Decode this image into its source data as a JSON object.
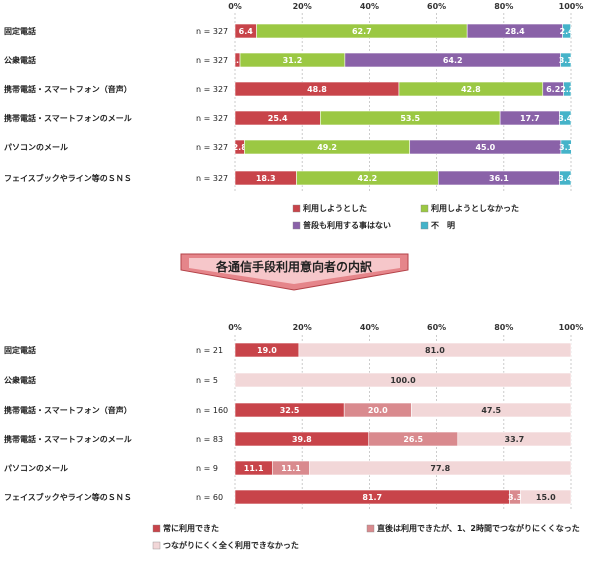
{
  "chart_data": [
    {
      "type": "bar",
      "stacked": true,
      "orientation": "horizontal",
      "xlim": [
        0,
        100
      ],
      "x_ticks": [
        "0%",
        "20%",
        "40%",
        "60%",
        "80%",
        "100%"
      ],
      "categories": [
        "固定電話",
        "公衆電話",
        "携帯電話・スマートフォン（音声）",
        "携帯電話・スマートフォンのメール",
        "パソコンのメール",
        "フェイスブックやライン等のＳＮＳ"
      ],
      "n_labels": [
        "n = 327",
        "n = 327",
        "n = 327",
        "n = 327",
        "n = 327",
        "n = 327"
      ],
      "series": [
        {
          "name": "利用しようとした",
          "color": "#c8444a",
          "values": [
            6.4,
            1.5,
            48.8,
            25.4,
            2.8,
            18.3
          ],
          "labels": [
            "6.4",
            "1.5",
            "48.8",
            "25.4",
            "2.8",
            "18.3"
          ]
        },
        {
          "name": "利用しようとしなかった",
          "color": "#9bc843",
          "values": [
            62.7,
            31.2,
            42.8,
            53.5,
            49.2,
            42.2
          ],
          "labels": [
            "62.7",
            "31.2",
            "42.8",
            "53.5",
            "49.2",
            "42.2"
          ]
        },
        {
          "name": "普段も利用する事はない",
          "color": "#8a62a8",
          "values": [
            28.4,
            64.2,
            6.2,
            17.7,
            45.0,
            36.1
          ],
          "labels": [
            "28.4",
            "64.2",
            "6.2",
            "17.7",
            "45.0",
            "36.1"
          ]
        },
        {
          "name": "不　明",
          "color": "#45b3c9",
          "values": [
            2.4,
            3.1,
            2.2,
            3.4,
            3.1,
            3.4
          ],
          "labels": [
            "2.4",
            "3.1",
            "2.2",
            "3.4",
            "3.1",
            "3.4"
          ]
        }
      ],
      "legend": "bottom"
    },
    {
      "type": "bar",
      "stacked": true,
      "orientation": "horizontal",
      "xlim": [
        0,
        100
      ],
      "x_ticks": [
        "0%",
        "20%",
        "40%",
        "60%",
        "80%",
        "100%"
      ],
      "categories": [
        "固定電話",
        "公衆電話",
        "携帯電話・スマートフォン（音声）",
        "携帯電話・スマートフォンのメール",
        "パソコンのメール",
        "フェイスブックやライン等のＳＮＳ"
      ],
      "n_labels": [
        "n = 21",
        "n = 5",
        "n = 160",
        "n = 83",
        "n = 9",
        "n = 60"
      ],
      "series": [
        {
          "name": "常に利用できた",
          "color": "#c8444a",
          "values": [
            19.0,
            0.0,
            32.5,
            39.8,
            11.1,
            81.7
          ],
          "labels": [
            "19.0",
            "",
            "32.5",
            "39.8",
            "11.1",
            "81.7"
          ]
        },
        {
          "name": "直後は利用できたが、1、2時間でつながりにくくなった",
          "color": "#d98a8e",
          "values": [
            0.0,
            0.0,
            20.0,
            26.5,
            11.1,
            3.3
          ],
          "labels": [
            "",
            "",
            "20.0",
            "26.5",
            "11.1",
            "3.3"
          ]
        },
        {
          "name": "つながりにくく全く利用できなかった",
          "color": "#f2d7d8",
          "values": [
            81.0,
            100.0,
            47.5,
            33.7,
            77.8,
            15.0
          ],
          "labels": [
            "81.0",
            "100.0",
            "47.5",
            "33.7",
            "77.8",
            "15.0"
          ]
        }
      ],
      "legend": "bottom"
    }
  ],
  "banner": {
    "text": "各通信手段利用意向者の内訳"
  }
}
